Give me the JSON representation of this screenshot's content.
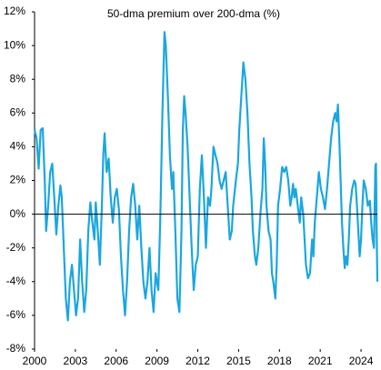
{
  "chart_data": {
    "type": "line",
    "title": "50-dma premium over 200-dma (%)",
    "color": "#1aa7e0",
    "xlim": [
      2000,
      2025.2
    ],
    "xticks": [
      2000,
      2003,
      2006,
      2009,
      2012,
      2015,
      2018,
      2021,
      2024
    ],
    "ylim": [
      -8,
      12
    ],
    "yticks": [
      {
        "value": -8,
        "label": "-8%"
      },
      {
        "value": -6,
        "label": "-6%"
      },
      {
        "value": -4,
        "label": "-4%"
      },
      {
        "value": -2,
        "label": "-2%"
      },
      {
        "value": 0,
        "label": "0%"
      },
      {
        "value": 2,
        "label": "2%"
      },
      {
        "value": 4,
        "label": "4%"
      },
      {
        "value": 6,
        "label": "6%"
      },
      {
        "value": 8,
        "label": "8%"
      },
      {
        "value": 10,
        "label": "10%"
      },
      {
        "value": 12,
        "label": "12%"
      }
    ],
    "x": [
      2000.0,
      2000.15,
      2000.3,
      2000.45,
      2000.6,
      2000.75,
      2000.85,
      2001.0,
      2001.15,
      2001.3,
      2001.45,
      2001.6,
      2001.75,
      2001.9,
      2002.0,
      2002.15,
      2002.3,
      2002.45,
      2002.6,
      2002.75,
      2002.9,
      2003.05,
      2003.2,
      2003.35,
      2003.5,
      2003.65,
      2003.8,
      2003.95,
      2004.1,
      2004.25,
      2004.4,
      2004.5,
      2004.65,
      2004.8,
      2004.95,
      2005.05,
      2005.15,
      2005.3,
      2005.45,
      2005.6,
      2005.75,
      2005.9,
      2006.05,
      2006.2,
      2006.35,
      2006.5,
      2006.65,
      2006.8,
      2006.95,
      2007.1,
      2007.25,
      2007.4,
      2007.55,
      2007.7,
      2007.85,
      2008.0,
      2008.15,
      2008.3,
      2008.45,
      2008.6,
      2008.75,
      2008.9,
      2009.1,
      2009.25,
      2009.4,
      2009.55,
      2009.65,
      2009.8,
      2009.95,
      2010.1,
      2010.2,
      2010.35,
      2010.5,
      2010.65,
      2010.8,
      2010.9,
      2011.0,
      2011.1,
      2011.25,
      2011.4,
      2011.55,
      2011.7,
      2011.85,
      2012.0,
      2012.15,
      2012.3,
      2012.45,
      2012.6,
      2012.75,
      2012.9,
      2013.0,
      2013.15,
      2013.3,
      2013.45,
      2013.6,
      2013.75,
      2013.9,
      2014.05,
      2014.2,
      2014.35,
      2014.5,
      2014.6,
      2014.8,
      2014.95,
      2015.05,
      2015.2,
      2015.35,
      2015.5,
      2015.65,
      2015.8,
      2015.95,
      2016.05,
      2016.2,
      2016.3,
      2016.45,
      2016.6,
      2016.75,
      2016.85,
      2016.95,
      2017.05,
      2017.2,
      2017.35,
      2017.45,
      2017.55,
      2017.7,
      2017.8,
      2017.9,
      2018.05,
      2018.2,
      2018.35,
      2018.5,
      2018.65,
      2018.8,
      2018.9,
      2019.0,
      2019.1,
      2019.2,
      2019.35,
      2019.5,
      2019.6,
      2019.75,
      2019.85,
      2019.95,
      2020.1,
      2020.25,
      2020.4,
      2020.5,
      2020.6,
      2020.75,
      2020.9,
      2021.05,
      2021.2,
      2021.35,
      2021.5,
      2021.65,
      2021.8,
      2021.95,
      2022.1,
      2022.2,
      2022.3,
      2022.4,
      2022.5,
      2022.6,
      2022.7,
      2022.8,
      2022.9,
      2023.0,
      2023.1,
      2023.2,
      2023.35,
      2023.5,
      2023.6,
      2023.7,
      2023.8,
      2023.9,
      2024.0,
      2024.1,
      2024.2,
      2024.35,
      2024.5,
      2024.65,
      2024.75,
      2024.85,
      2024.95,
      2025.05,
      2025.1,
      2025.15,
      2025.2
    ],
    "values": [
      5,
      4.5,
      2.7,
      5,
      5.1,
      2,
      -1,
      0.5,
      2.5,
      3,
      1,
      -1.2,
      0.5,
      1.7,
      1,
      -2,
      -5,
      -6.3,
      -4,
      -3,
      -4.5,
      -6,
      -5,
      -1.5,
      -4,
      -5.8,
      -4.5,
      -1,
      0.7,
      -0.5,
      -1.5,
      0.7,
      -1,
      -3,
      0.5,
      3.5,
      4.8,
      2.5,
      3.3,
      1,
      -0.5,
      1,
      1.5,
      0.3,
      -2.5,
      -4.5,
      -6,
      -4,
      -1,
      1,
      1.8,
      0.5,
      -1.5,
      0.5,
      -2,
      -4,
      -5,
      -4,
      -2,
      -4.5,
      -5.8,
      -3.5,
      -4.5,
      0,
      6,
      10.8,
      10,
      7,
      3.5,
      1.5,
      2.5,
      -1,
      -5,
      -5.8,
      -1,
      5,
      7,
      6,
      4,
      1,
      -2,
      -4.5,
      -3,
      -2.5,
      1.5,
      3.5,
      1,
      -2,
      1,
      0.5,
      1.5,
      4,
      3.5,
      3,
      2,
      1.5,
      2,
      2.5,
      0.5,
      -1.5,
      -1,
      0.5,
      2,
      3,
      5,
      7,
      9,
      8,
      6,
      3,
      1,
      -1,
      -2.5,
      -3,
      -2,
      0,
      1.5,
      4.5,
      3,
      0.5,
      -1,
      -1.5,
      -3.5,
      -4,
      -5,
      -3,
      0.5,
      1.5,
      2.8,
      2.5,
      2.8,
      2,
      0.5,
      1,
      1.8,
      1,
      1.5,
      0.5,
      -0.5,
      1,
      0,
      -1.5,
      -3,
      -3.8,
      -3.5,
      -1.5,
      -2.5,
      -0.5,
      1,
      2.5,
      1.5,
      1,
      0.3,
      1.5,
      3,
      4.5,
      5.5,
      6,
      5.5,
      6.5,
      4.5,
      2,
      -0.5,
      -2,
      -3.2,
      -2.5,
      -3,
      -1.5,
      0.5,
      1.5,
      2,
      1.8,
      0.5,
      -1,
      -2.5,
      -1.5,
      0.5,
      2,
      1.5,
      0.5,
      0.8,
      -0.5,
      -1.5,
      -2,
      2.8,
      3,
      -1,
      -4
    ]
  }
}
